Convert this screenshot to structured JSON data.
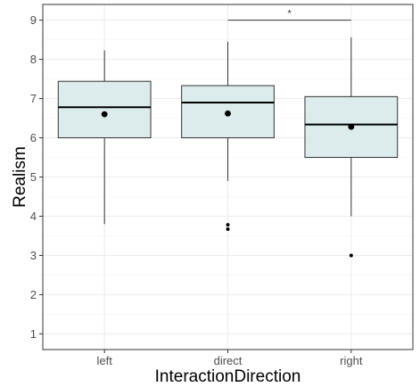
{
  "chart_data": {
    "type": "boxplot",
    "title": "",
    "xlabel": "InteractionDirection",
    "ylabel": "Realism",
    "categories": [
      "left",
      "direct",
      "right"
    ],
    "ylim": [
      0.6,
      9.4
    ],
    "yticks": [
      1,
      2,
      3,
      4,
      5,
      6,
      7,
      8,
      9
    ],
    "grid": true,
    "boxes": [
      {
        "category": "left",
        "whisker_low": 3.8,
        "q1": 6.0,
        "median": 6.78,
        "q3": 7.44,
        "whisker_high": 8.23,
        "mean": 6.6,
        "outliers": []
      },
      {
        "category": "direct",
        "whisker_low": 4.9,
        "q1": 6.0,
        "median": 6.9,
        "q3": 7.33,
        "whisker_high": 8.45,
        "mean": 6.62,
        "outliers": [
          3.78,
          3.67
        ]
      },
      {
        "category": "right",
        "whisker_low": 4.0,
        "q1": 5.5,
        "median": 6.34,
        "q3": 7.05,
        "whisker_high": 8.56,
        "mean": 6.28,
        "outliers": [
          3.0
        ]
      }
    ],
    "significance": [
      {
        "from": "direct",
        "to": "right",
        "y": 9.0,
        "label": "*"
      }
    ],
    "colors": {
      "box_fill": "#dcebeb",
      "box_stroke": "#333333",
      "panel_border": "#333333",
      "grid_major": "#ebebeb",
      "grid_minor": "#f5f5f5",
      "point": "#000000"
    }
  }
}
